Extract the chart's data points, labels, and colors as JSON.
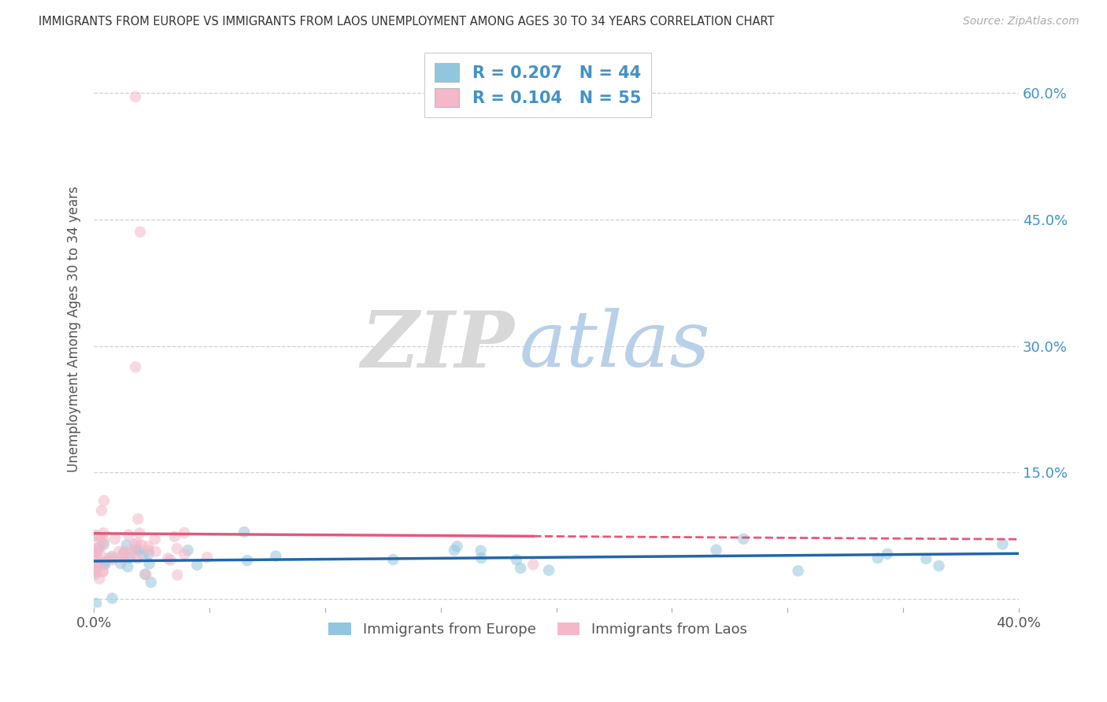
{
  "title": "IMMIGRANTS FROM EUROPE VS IMMIGRANTS FROM LAOS UNEMPLOYMENT AMONG AGES 30 TO 34 YEARS CORRELATION CHART",
  "source": "Source: ZipAtlas.com",
  "ylabel": "Unemployment Among Ages 30 to 34 years",
  "xlim": [
    0.0,
    0.4
  ],
  "ylim": [
    -0.01,
    0.65
  ],
  "yticks": [
    0.0,
    0.15,
    0.3,
    0.45,
    0.6
  ],
  "ytick_labels": [
    "",
    "15.0%",
    "30.0%",
    "45.0%",
    "60.0%"
  ],
  "xticks": [
    0.0,
    0.05,
    0.1,
    0.15,
    0.2,
    0.25,
    0.3,
    0.35,
    0.4
  ],
  "xtick_labels": [
    "0.0%",
    "",
    "",
    "",
    "",
    "",
    "",
    "",
    "40.0%"
  ],
  "europe_color": "#92c5de",
  "laos_color": "#f4b8c8",
  "europe_line_color": "#2166ac",
  "laos_line_color": "#e8567a",
  "europe_R": 0.207,
  "europe_N": 44,
  "laos_R": 0.104,
  "laos_N": 55,
  "zip_color": "#d8d8d8",
  "atlas_color": "#b8d0e8",
  "legend_label_europe": "Immigrants from Europe",
  "legend_label_laos": "Immigrants from Laos",
  "tick_color": "#4292c6",
  "grid_color": "#d0d0d0",
  "title_color": "#333333",
  "source_color": "#aaaaaa"
}
